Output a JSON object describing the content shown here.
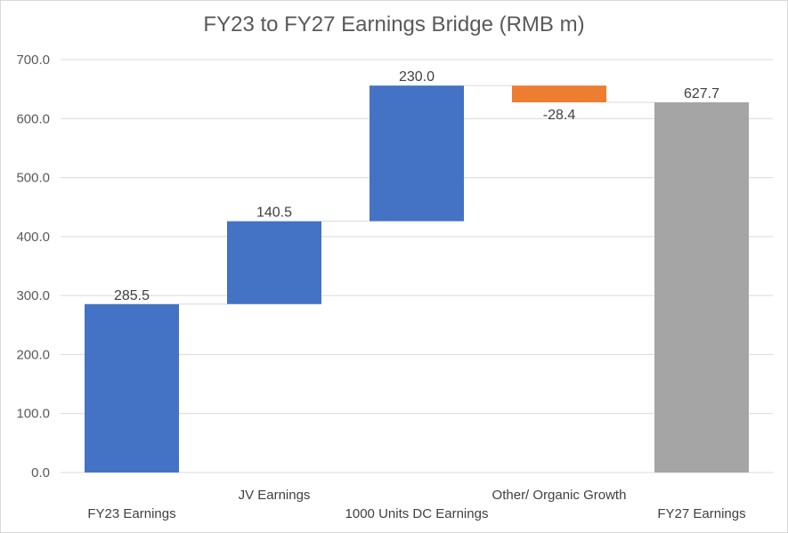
{
  "chart_data": {
    "type": "waterfall",
    "title": "FY23 to FY27 Earnings Bridge (RMB m)",
    "xlabel": "",
    "ylabel": "",
    "ylim": [
      0,
      700
    ],
    "yticks": [
      0,
      100,
      200,
      300,
      400,
      500,
      600,
      700
    ],
    "ytick_labels": [
      "0.0",
      "100.0",
      "200.0",
      "300.0",
      "400.0",
      "500.0",
      "600.0",
      "700.0"
    ],
    "grid": true,
    "categories": [
      "FY23 Earnings",
      "JV Earnings",
      "1000 Units DC Earnings",
      "Other/ Organic Growth",
      "FY27 Earnings"
    ],
    "values": [
      285.5,
      140.5,
      230.0,
      -28.4,
      627.7
    ],
    "value_labels": [
      "285.5",
      "140.5",
      "230.0",
      "-28.4",
      "627.7"
    ],
    "kinds": [
      "total",
      "increase",
      "increase",
      "decrease",
      "total"
    ],
    "colors": {
      "increase": "#4472C4",
      "decrease": "#ED7D31",
      "total_start": "#4472C4",
      "total_end": "#A5A5A5",
      "gridline": "#d9d9d9",
      "connector": "#d9d9d9"
    }
  }
}
